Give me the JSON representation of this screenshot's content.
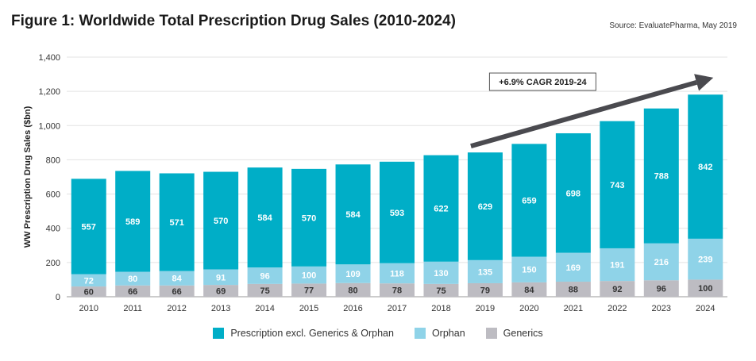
{
  "title": "Figure 1: Worldwide Total Prescription Drug Sales (2010-2024)",
  "source": "Source: EvaluatePharma, May 2019",
  "colors": {
    "rx": "#00aec7",
    "orphan": "#8fd3e8",
    "generics": "#bdbcc2",
    "grid": "#e3e3e3",
    "arrow": "#4a4a4f"
  },
  "chart_data": {
    "type": "bar",
    "stacked": true,
    "categories": [
      "2010",
      "2011",
      "2012",
      "2013",
      "2014",
      "2015",
      "2016",
      "2017",
      "2018",
      "2019",
      "2020",
      "2021",
      "2022",
      "2023",
      "2024"
    ],
    "series": [
      {
        "name": "Generics",
        "values": [
          60,
          66,
          66,
          69,
          75,
          77,
          80,
          78,
          75,
          79,
          84,
          88,
          92,
          96,
          100
        ]
      },
      {
        "name": "Orphan",
        "values": [
          72,
          80,
          84,
          91,
          96,
          100,
          109,
          118,
          130,
          135,
          150,
          169,
          191,
          216,
          239
        ]
      },
      {
        "name": "Prescription excl. Generics & Orphan",
        "values": [
          557,
          589,
          571,
          570,
          584,
          570,
          584,
          593,
          622,
          629,
          659,
          698,
          743,
          788,
          842
        ]
      }
    ],
    "ylabel": "WW Prescription Drug Sales ($bn)",
    "xlabel": "",
    "ylim": [
      0,
      1400
    ],
    "yticks": [
      0,
      200,
      400,
      600,
      800,
      1000,
      1200,
      1400
    ],
    "ytick_labels": [
      "0",
      "200",
      "400",
      "600",
      "800",
      "1,000",
      "1,200",
      "1,400"
    ],
    "grid": true,
    "legend_position": "bottom",
    "annotation": {
      "text": "+6.9% CAGR 2019-24",
      "from": "2019",
      "to": "2024"
    }
  },
  "legend": [
    {
      "label": "Prescription excl. Generics & Orphan",
      "color": "#00aec7"
    },
    {
      "label": "Orphan",
      "color": "#8fd3e8"
    },
    {
      "label": "Generics",
      "color": "#bdbcc2"
    }
  ]
}
